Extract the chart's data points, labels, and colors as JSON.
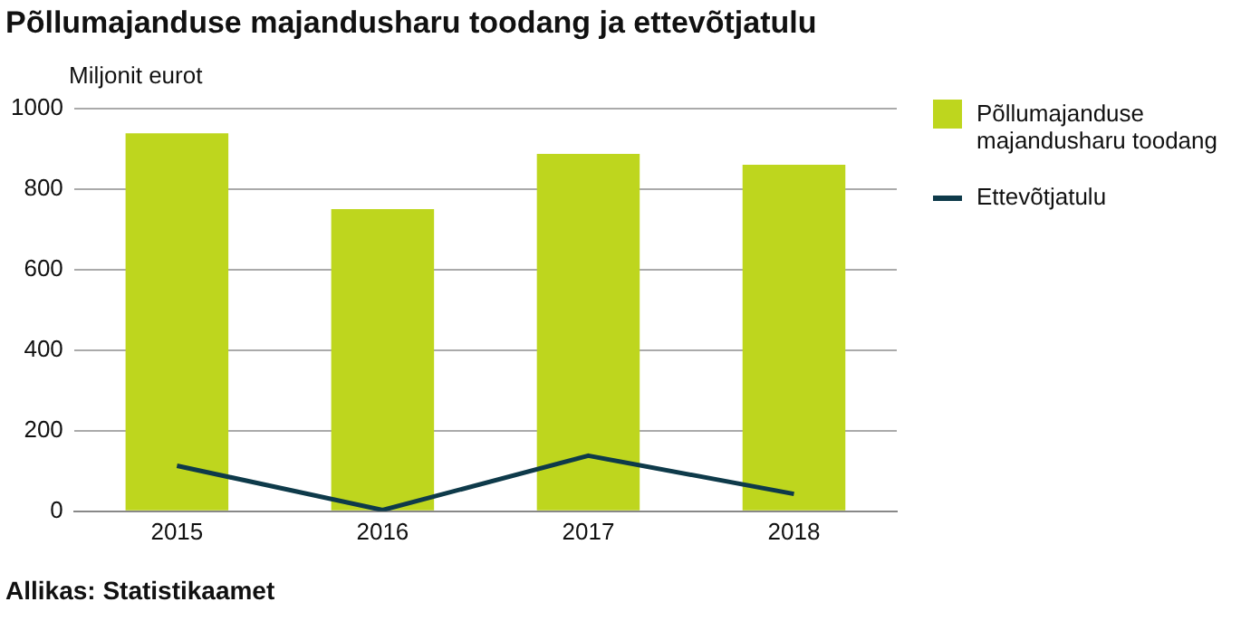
{
  "chart_data": {
    "type": "bar",
    "title": "Põllumajanduse majandusharu toodang ja ettevõtjatulu",
    "ylabel": "Miljonit eurot",
    "categories": [
      "2015",
      "2016",
      "2017",
      "2018"
    ],
    "series": [
      {
        "name": "Põllumajanduse majandusharu toodang",
        "color": "#bed61e",
        "values": [
          938,
          750,
          887,
          860
        ]
      },
      {
        "name": "Ettevõtjatulu",
        "type": "line",
        "color": "#0e3a4a",
        "values": [
          113,
          3,
          138,
          43
        ]
      }
    ],
    "ylim": [
      0,
      1000
    ],
    "yticks": [
      0,
      200,
      400,
      600,
      800,
      1000
    ],
    "grid": "y",
    "legend": "right",
    "marker": "none",
    "line_style": "solid",
    "annotations": [
      "Allikas: Statistikaamet"
    ]
  }
}
